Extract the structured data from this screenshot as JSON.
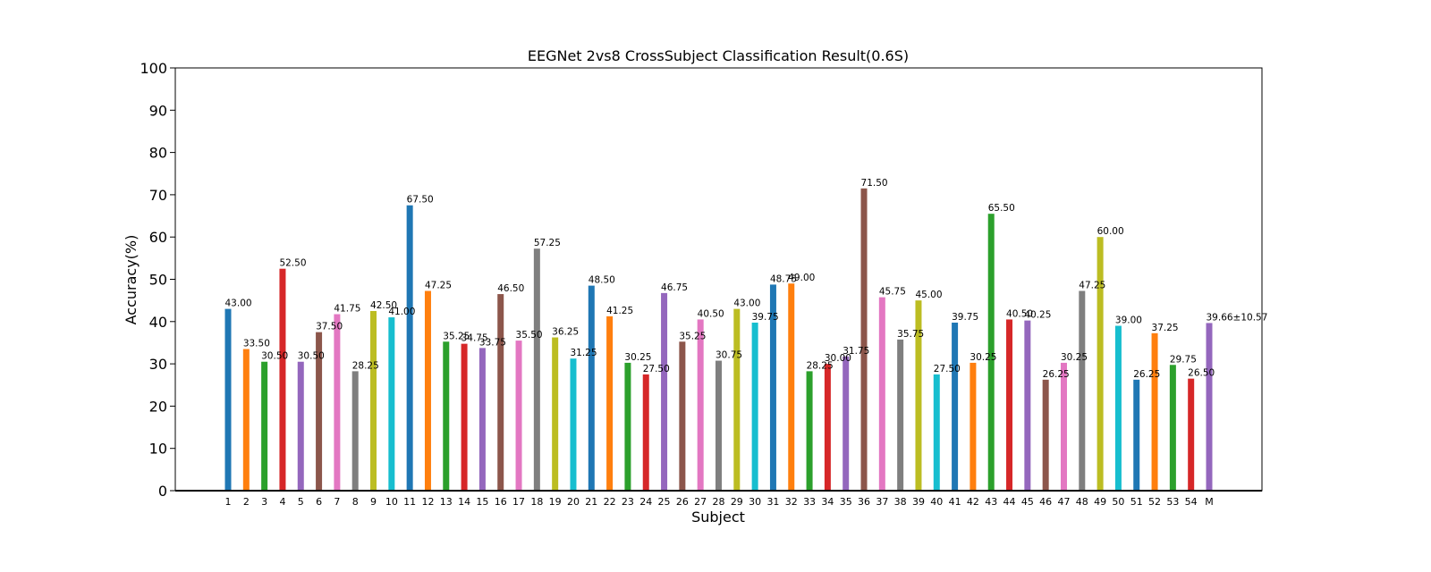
{
  "chart_data": {
    "type": "bar",
    "title": "EEGNet 2vs8 CrossSubject Classification Result(0.6S)",
    "xlabel": "Subject",
    "ylabel": "Accuracy(%)",
    "ylim": [
      0,
      100
    ],
    "yticks": [
      0,
      10,
      20,
      30,
      40,
      50,
      60,
      70,
      80,
      90,
      100
    ],
    "grid": false,
    "categories": [
      "1",
      "2",
      "3",
      "4",
      "5",
      "6",
      "7",
      "8",
      "9",
      "10",
      "11",
      "12",
      "13",
      "14",
      "15",
      "16",
      "17",
      "18",
      "19",
      "20",
      "21",
      "22",
      "23",
      "24",
      "25",
      "26",
      "27",
      "28",
      "29",
      "30",
      "31",
      "32",
      "33",
      "34",
      "35",
      "36",
      "37",
      "38",
      "39",
      "40",
      "41",
      "42",
      "43",
      "44",
      "45",
      "46",
      "47",
      "48",
      "49",
      "50",
      "51",
      "52",
      "53",
      "54",
      "M"
    ],
    "values": [
      43.0,
      33.5,
      30.5,
      52.5,
      30.5,
      37.5,
      41.75,
      28.25,
      42.5,
      41.0,
      67.5,
      47.25,
      35.25,
      34.75,
      33.75,
      46.5,
      35.5,
      57.25,
      36.25,
      31.25,
      48.5,
      41.25,
      30.25,
      27.5,
      46.75,
      35.25,
      40.5,
      30.75,
      43.0,
      39.75,
      48.75,
      49.0,
      28.25,
      30.0,
      31.75,
      71.5,
      45.75,
      35.75,
      45.0,
      27.5,
      39.75,
      30.25,
      65.5,
      40.5,
      40.25,
      26.25,
      30.25,
      47.25,
      60.0,
      39.0,
      26.25,
      37.25,
      29.75,
      26.5,
      39.66
    ],
    "value_labels": [
      "43.00",
      "33.50",
      "30.50",
      "52.50",
      "30.50",
      "37.50",
      "41.75",
      "28.25",
      "42.50",
      "41.00",
      "67.50",
      "47.25",
      "35.25",
      "34.75",
      "33.75",
      "46.50",
      "35.50",
      "57.25",
      "36.25",
      "31.25",
      "48.50",
      "41.25",
      "30.25",
      "27.50",
      "46.75",
      "35.25",
      "40.50",
      "30.75",
      "43.00",
      "39.75",
      "48.75",
      "49.00",
      "28.25",
      "30.00",
      "31.75",
      "71.50",
      "45.75",
      "35.75",
      "45.00",
      "27.50",
      "39.75",
      "30.25",
      "65.50",
      "40.50",
      "40.25",
      "26.25",
      "30.25",
      "47.25",
      "60.00",
      "39.00",
      "26.25",
      "37.25",
      "29.75",
      "26.50",
      "39.66±10.57"
    ],
    "colors": [
      "#1f77b4",
      "#ff7f0e",
      "#2ca02c",
      "#d62728",
      "#9467bd",
      "#8c564b",
      "#e377c2",
      "#7f7f7f",
      "#bcbd22",
      "#17becf"
    ],
    "mean_label_color": "#ff0000"
  }
}
